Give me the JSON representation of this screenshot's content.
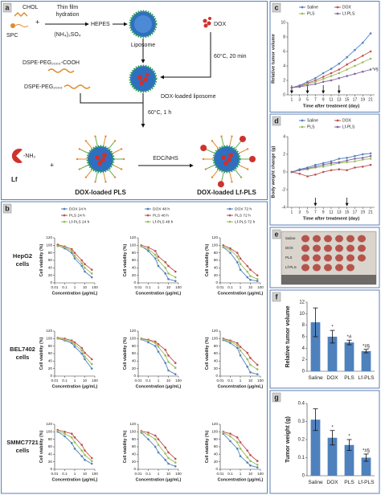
{
  "panel_labels": [
    "a",
    "b",
    "c",
    "d",
    "e",
    "f",
    "g"
  ],
  "diagram": {
    "chol": "CHOL",
    "spc": "SPC",
    "plus": "+",
    "hydration": [
      "Thin film",
      "hydration"
    ],
    "hepes": "HEPES",
    "salt": "(NH₄)₂SO₄",
    "liposome": "Liposome",
    "dox": "DOX",
    "step1": "60°C, 20 min",
    "peg_cooh": "DSPE-PEG₂₀₀₀-COOH",
    "peg": "DSPE-PEG₂₀₀₀",
    "dox_liposome": "DOX-loaded liposome",
    "step2": "60°C, 1 h",
    "nh2": "-NH₂",
    "lf": "Lf",
    "edc": "EDC/NHS",
    "pls": "DOX-loaded PLS",
    "lfpls": "DOX-loaded Lf-PLS"
  },
  "tumor_image": {
    "rows": [
      "Saline",
      "DOX",
      "PLS",
      "Lf-PLS"
    ]
  },
  "chart_data": [
    {
      "type": "line",
      "row_label": [
        "HepG2",
        "cells"
      ],
      "legend": "top",
      "xlabel": "Concentration (μg/mL)",
      "ylabel": "Cell viability (%)",
      "x": [
        0.02,
        0.1,
        0.5,
        1,
        5,
        10,
        50
      ],
      "xlog": true,
      "xlim": [
        0.01,
        100
      ],
      "xticks": [
        0.01,
        0.1,
        1,
        10,
        100
      ],
      "ylim": [
        0,
        120
      ],
      "yticks": [
        0,
        20,
        40,
        60,
        80,
        100,
        120
      ],
      "series": [
        {
          "name": "DOX 24 h",
          "color": "#4f81bd",
          "values": [
            100,
            92,
            80,
            65,
            45,
            30,
            15
          ]
        },
        {
          "name": "PLS 24 h",
          "color": "#c0504d",
          "values": [
            102,
            97,
            90,
            80,
            60,
            50,
            35
          ]
        },
        {
          "name": "Lf-PLS 24 h",
          "color": "#9bbb59",
          "values": [
            98,
            95,
            85,
            72,
            52,
            40,
            25
          ]
        }
      ]
    },
    {
      "type": "line",
      "legend": "top",
      "xlabel": "Concentration (μg/mL)",
      "ylabel": "Cell viability (%)",
      "x": [
        0.02,
        0.1,
        0.5,
        1,
        5,
        10,
        50
      ],
      "xlog": true,
      "xlim": [
        0.01,
        100
      ],
      "xticks": [
        0.01,
        0.1,
        1,
        10,
        100
      ],
      "ylim": [
        0,
        120
      ],
      "yticks": [
        0,
        20,
        40,
        60,
        80,
        100,
        120
      ],
      "series": [
        {
          "name": "DOX 48 h",
          "color": "#4f81bd",
          "values": [
            98,
            85,
            65,
            45,
            25,
            10,
            5
          ]
        },
        {
          "name": "PLS 48 h",
          "color": "#c0504d",
          "values": [
            100,
            95,
            85,
            70,
            55,
            45,
            30
          ]
        },
        {
          "name": "Lf-PLS 48 h",
          "color": "#9bbb59",
          "values": [
            97,
            90,
            75,
            60,
            40,
            25,
            15
          ]
        }
      ]
    },
    {
      "type": "line",
      "legend": "top",
      "xlabel": "Concentration (μg/mL)",
      "ylabel": "Cell viability (%)",
      "x": [
        0.02,
        0.1,
        0.5,
        1,
        5,
        10,
        50
      ],
      "xlog": true,
      "xlim": [
        0.01,
        100
      ],
      "xticks": [
        0.01,
        0.1,
        1,
        10,
        100
      ],
      "ylim": [
        0,
        120
      ],
      "yticks": [
        0,
        20,
        40,
        60,
        80,
        100,
        120
      ],
      "series": [
        {
          "name": "DOX 72 h",
          "color": "#4f81bd",
          "values": [
            95,
            80,
            55,
            35,
            15,
            8,
            5
          ]
        },
        {
          "name": "PLS 72 h",
          "color": "#c0504d",
          "values": [
            100,
            92,
            80,
            65,
            45,
            35,
            20
          ]
        },
        {
          "name": "Lf-PLS 72 h",
          "color": "#9bbb59",
          "values": [
            96,
            88,
            70,
            50,
            30,
            18,
            10
          ]
        }
      ]
    },
    {
      "type": "line",
      "row_label": [
        "BEL7402",
        "cells"
      ],
      "xlabel": "Concentration (μg/mL)",
      "ylabel": "Cell viability (%)",
      "x": [
        0.02,
        0.1,
        0.5,
        1,
        5,
        10,
        50
      ],
      "xlog": true,
      "xlim": [
        0.01,
        100
      ],
      "xticks": [
        0.01,
        0.1,
        1,
        10,
        100
      ],
      "ylim": [
        0,
        120
      ],
      "yticks": [
        0,
        20,
        40,
        60,
        80,
        100,
        120
      ],
      "series": [
        {
          "color": "#4f81bd",
          "values": [
            100,
            95,
            88,
            78,
            60,
            45,
            20
          ]
        },
        {
          "color": "#c0504d",
          "values": [
            102,
            100,
            95,
            90,
            75,
            62,
            45
          ]
        },
        {
          "color": "#9bbb59",
          "values": [
            100,
            97,
            92,
            84,
            68,
            52,
            32
          ]
        }
      ]
    },
    {
      "type": "line",
      "xlabel": "Concentration (μg/mL)",
      "ylabel": "Cell viability (%)",
      "x": [
        0.02,
        0.1,
        0.5,
        1,
        5,
        10,
        50
      ],
      "xlog": true,
      "xlim": [
        0.01,
        100
      ],
      "xticks": [
        0.01,
        0.1,
        1,
        10,
        100
      ],
      "ylim": [
        0,
        120
      ],
      "yticks": [
        0,
        20,
        40,
        60,
        80,
        100,
        120
      ],
      "series": [
        {
          "color": "#4f81bd",
          "values": [
            98,
            90,
            80,
            65,
            35,
            15,
            5
          ]
        },
        {
          "color": "#c0504d",
          "values": [
            100,
            97,
            92,
            85,
            70,
            55,
            35
          ]
        },
        {
          "color": "#9bbb59",
          "values": [
            99,
            95,
            88,
            78,
            55,
            38,
            22
          ]
        }
      ]
    },
    {
      "type": "line",
      "xlabel": "Concentration (μg/mL)",
      "ylabel": "Cell viability (%)",
      "x": [
        0.02,
        0.1,
        0.5,
        1,
        5,
        10,
        50
      ],
      "xlog": true,
      "xlim": [
        0.01,
        100
      ],
      "xticks": [
        0.01,
        0.1,
        1,
        10,
        100
      ],
      "ylim": [
        0,
        120
      ],
      "yticks": [
        0,
        20,
        40,
        60,
        80,
        100,
        120
      ],
      "series": [
        {
          "color": "#4f81bd",
          "values": [
            96,
            88,
            75,
            55,
            25,
            10,
            5
          ]
        },
        {
          "color": "#c0504d",
          "values": [
            100,
            95,
            88,
            78,
            62,
            48,
            30
          ]
        },
        {
          "color": "#9bbb59",
          "values": [
            98,
            92,
            82,
            68,
            45,
            30,
            18
          ]
        }
      ]
    },
    {
      "type": "line",
      "row_label": [
        "SMMC7721",
        "cells"
      ],
      "xlabel": "Concentration (μg/mL)",
      "ylabel": "Cell viability (%)",
      "x": [
        0.02,
        0.1,
        0.5,
        1,
        5,
        10,
        50
      ],
      "xlog": true,
      "xlim": [
        0.01,
        100
      ],
      "xticks": [
        0.01,
        0.1,
        1,
        10,
        100
      ],
      "ylim": [
        0,
        120
      ],
      "yticks": [
        0,
        20,
        40,
        60,
        80,
        100,
        120
      ],
      "series": [
        {
          "color": "#4f81bd",
          "values": [
            100,
            88,
            70,
            55,
            35,
            25,
            15
          ]
        },
        {
          "color": "#c0504d",
          "values": [
            105,
            100,
            95,
            85,
            65,
            50,
            30
          ]
        },
        {
          "color": "#9bbb59",
          "values": [
            102,
            95,
            85,
            72,
            50,
            38,
            22
          ]
        }
      ]
    },
    {
      "type": "line",
      "xlabel": "Concentration (μg/mL)",
      "ylabel": "Cell viability (%)",
      "x": [
        0.02,
        0.1,
        0.5,
        1,
        5,
        10,
        50
      ],
      "xlog": true,
      "xlim": [
        0.01,
        100
      ],
      "xticks": [
        0.01,
        0.1,
        1,
        10,
        100
      ],
      "ylim": [
        0,
        120
      ],
      "yticks": [
        0,
        20,
        40,
        60,
        80,
        100,
        120
      ],
      "series": [
        {
          "color": "#4f81bd",
          "values": [
            98,
            80,
            60,
            45,
            25,
            15,
            8
          ]
        },
        {
          "color": "#c0504d",
          "values": [
            102,
            98,
            90,
            80,
            58,
            45,
            28
          ]
        },
        {
          "color": "#9bbb59",
          "values": [
            100,
            92,
            80,
            65,
            42,
            30,
            18
          ]
        }
      ]
    },
    {
      "type": "line",
      "xlabel": "Concentration (μg/mL)",
      "ylabel": "Cell viability (%)",
      "x": [
        0.02,
        0.1,
        0.5,
        1,
        5,
        10,
        50
      ],
      "xlog": true,
      "xlim": [
        0.01,
        100
      ],
      "xticks": [
        0.01,
        0.1,
        1,
        10,
        100
      ],
      "ylim": [
        0,
        120
      ],
      "yticks": [
        0,
        20,
        40,
        60,
        80,
        100,
        120
      ],
      "series": [
        {
          "color": "#4f81bd",
          "values": [
            95,
            75,
            55,
            35,
            18,
            10,
            5
          ]
        },
        {
          "color": "#c0504d",
          "values": [
            100,
            95,
            85,
            72,
            50,
            38,
            22
          ]
        },
        {
          "color": "#9bbb59",
          "values": [
            98,
            88,
            72,
            55,
            32,
            22,
            12
          ]
        }
      ]
    },
    {
      "type": "line",
      "legend": "top",
      "xlabel": "Time after treatment (day)",
      "ylabel": "Relative tumor volume",
      "x": [
        1,
        3,
        5,
        7,
        9,
        11,
        13,
        15,
        17,
        19,
        21
      ],
      "xlim": [
        0,
        22
      ],
      "xticks": [
        1,
        3,
        5,
        7,
        9,
        11,
        13,
        15,
        17,
        19,
        21
      ],
      "ylim": [
        0,
        10
      ],
      "yticks": [
        0,
        2,
        4,
        6,
        8,
        10
      ],
      "treatment_days": [
        1,
        5,
        9,
        13
      ],
      "annotation": "*#§",
      "series": [
        {
          "name": "Saline",
          "color": "#4f81bd",
          "values": [
            1,
            1.3,
            1.8,
            2.3,
            3,
            3.6,
            4.3,
            5.2,
            6.2,
            7.2,
            8.5
          ]
        },
        {
          "name": "DOX",
          "color": "#c0504d",
          "values": [
            1,
            1.2,
            1.6,
            2,
            2.5,
            3,
            3.5,
            4.2,
            4.8,
            5.4,
            6
          ]
        },
        {
          "name": "PLS",
          "color": "#9bbb59",
          "values": [
            1,
            1.15,
            1.5,
            1.8,
            2.2,
            2.6,
            3,
            3.5,
            4,
            4.5,
            5
          ]
        },
        {
          "name": "Lf-PLS",
          "color": "#8064a2",
          "values": [
            1,
            1.1,
            1.3,
            1.5,
            1.8,
            2,
            2.3,
            2.6,
            2.9,
            3.2,
            3.5
          ]
        }
      ]
    },
    {
      "type": "line",
      "legend": "top",
      "xlabel": "Time after treatment (day)",
      "ylabel": "Body weight change (g)",
      "x": [
        1,
        3,
        5,
        7,
        9,
        11,
        13,
        15,
        17,
        19,
        21
      ],
      "xlim": [
        0,
        22
      ],
      "xticks": [
        1,
        3,
        5,
        7,
        9,
        11,
        13,
        15,
        17,
        19,
        21
      ],
      "ylim": [
        -4,
        4
      ],
      "yticks": [
        -4,
        -2,
        0,
        2,
        4
      ],
      "treatment_days": [
        7,
        15
      ],
      "series": [
        {
          "name": "Saline",
          "color": "#4f81bd",
          "values": [
            0,
            0.3,
            0.5,
            0.8,
            1,
            1.2,
            1.5,
            1.6,
            1.8,
            2,
            2.1
          ]
        },
        {
          "name": "DOX",
          "color": "#c0504d",
          "values": [
            0,
            -0.2,
            -0.5,
            -0.3,
            0,
            0.2,
            0.3,
            0.2,
            0.5,
            0.6,
            0.8
          ]
        },
        {
          "name": "PLS",
          "color": "#9bbb59",
          "values": [
            0,
            0.2,
            0.3,
            0.5,
            0.6,
            0.8,
            1,
            1.1,
            1.2,
            1.4,
            1.5
          ]
        },
        {
          "name": "Lf-PLS",
          "color": "#8064a2",
          "values": [
            0,
            0.2,
            0.4,
            0.6,
            0.8,
            1,
            1.1,
            1.3,
            1.5,
            1.6,
            1.8
          ]
        }
      ]
    },
    {
      "type": "bar",
      "ylabel": "Relative tumor volume",
      "categories": [
        "Saline",
        "DOX",
        "PLS",
        "Lf-PLS"
      ],
      "values": [
        8.5,
        6,
        5,
        3.5
      ],
      "errors": [
        2.5,
        1.1,
        0.4,
        0.3
      ],
      "color": "#4f81bd",
      "ylim": [
        0,
        12
      ],
      "yticks": [
        0,
        2,
        4,
        6,
        8,
        10,
        12
      ],
      "annotations": {
        "DOX": "*",
        "PLS": "*#",
        "Lf-PLS": "*#§"
      }
    },
    {
      "type": "bar",
      "ylabel": "Tumor weight (g)",
      "categories": [
        "Saline",
        "DOX",
        "PLS",
        "Lf-PLS"
      ],
      "values": [
        0.31,
        0.21,
        0.17,
        0.1
      ],
      "errors": [
        0.06,
        0.04,
        0.03,
        0.02
      ],
      "color": "#4f81bd",
      "ylim": [
        0,
        0.4
      ],
      "yticks": [
        0,
        0.1,
        0.2,
        0.3,
        0.4
      ],
      "annotations": {
        "DOX": "*",
        "PLS": "*",
        "Lf-PLS": "*#§"
      }
    }
  ]
}
